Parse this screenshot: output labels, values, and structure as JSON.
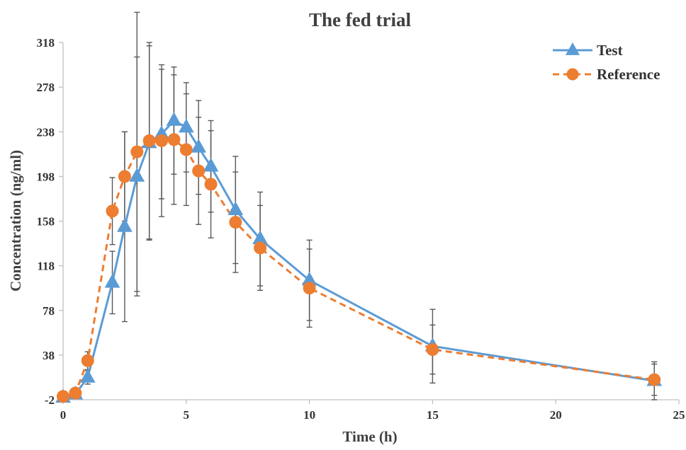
{
  "chart_data": {
    "type": "line",
    "title": "The fed trial",
    "xlabel": "Time (h)",
    "ylabel": "Concentration (ng/ml)",
    "xlim": [
      0,
      25
    ],
    "ylim": [
      -2,
      318
    ],
    "x_ticks": [
      0,
      5,
      10,
      15,
      20,
      25
    ],
    "y_ticks": [
      -2,
      38,
      78,
      118,
      158,
      198,
      238,
      278,
      318
    ],
    "grid": false,
    "legend_position": "top-right",
    "series": [
      {
        "name": "Test",
        "color": "#5B9BD5",
        "marker": "triangle",
        "line_style": "solid",
        "x": [
          0,
          0.5,
          1,
          2,
          2.5,
          3,
          3.5,
          4,
          4.5,
          5,
          5.5,
          6,
          7,
          8,
          10,
          15,
          24
        ],
        "y": [
          0,
          3,
          18,
          103,
          153,
          198,
          228,
          236,
          248,
          242,
          224,
          207,
          168,
          142,
          105,
          46,
          15
        ],
        "err": [
          0,
          2,
          6,
          28,
          85,
          107,
          87,
          58,
          48,
          40,
          42,
          41,
          48,
          42,
          36,
          33,
          17
        ]
      },
      {
        "name": "Reference",
        "color": "#ED7D31",
        "marker": "circle",
        "line_style": "dashed",
        "x": [
          0,
          0.5,
          1,
          2,
          2.5,
          3,
          3.5,
          4,
          4.5,
          5,
          5.5,
          6,
          7,
          8,
          10,
          15,
          24
        ],
        "y": [
          1,
          4,
          33,
          167,
          198,
          220,
          230,
          230,
          231,
          222,
          203,
          191,
          157,
          134,
          98,
          43,
          16
        ],
        "err": [
          0,
          3,
          8,
          30,
          40,
          125,
          88,
          68,
          58,
          50,
          48,
          48,
          45,
          38,
          35,
          22,
          14
        ]
      }
    ]
  }
}
